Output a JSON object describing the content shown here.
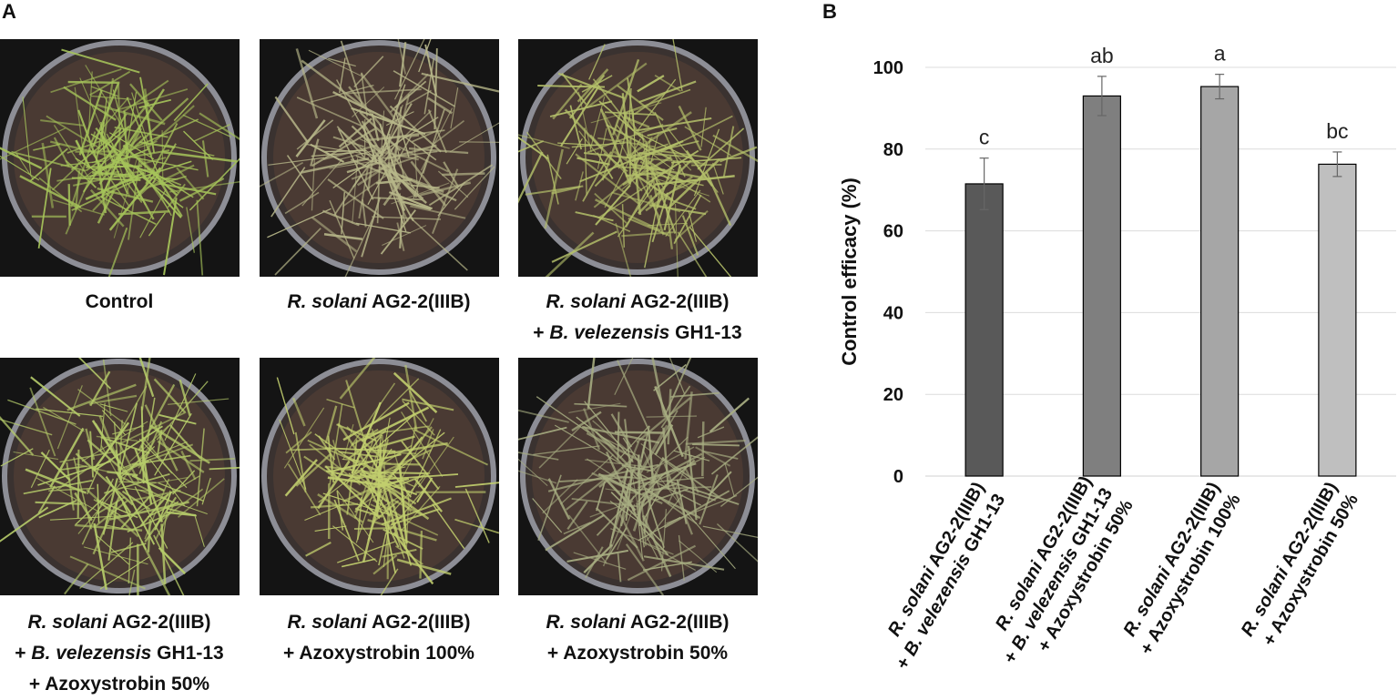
{
  "panel_a": {
    "letter": "A",
    "photos": [
      {
        "lines": [
          {
            "parts": [
              {
                "t": "Control",
                "i": false
              }
            ]
          }
        ]
      },
      {
        "lines": [
          {
            "parts": [
              {
                "t": "R. solani",
                "i": true
              },
              {
                "t": " AG2-2(IIIB)",
                "i": false
              }
            ]
          }
        ]
      },
      {
        "lines": [
          {
            "parts": [
              {
                "t": "R. solani",
                "i": true
              },
              {
                "t": " AG2-2(IIIB)",
                "i": false
              }
            ]
          },
          {
            "parts": [
              {
                "t": "+ ",
                "i": false
              },
              {
                "t": "B. velezensis",
                "i": true
              },
              {
                "t": " GH1-13",
                "i": false
              }
            ]
          }
        ]
      },
      {
        "lines": [
          {
            "parts": [
              {
                "t": "R. solani",
                "i": true
              },
              {
                "t": " AG2-2(IIIB)",
                "i": false
              }
            ]
          },
          {
            "parts": [
              {
                "t": "+ ",
                "i": false
              },
              {
                "t": "B. velezensis",
                "i": true
              },
              {
                "t": " GH1-13",
                "i": false
              }
            ]
          },
          {
            "parts": [
              {
                "t": "+ Azoxystrobin 50%",
                "i": false
              }
            ]
          }
        ]
      },
      {
        "lines": [
          {
            "parts": [
              {
                "t": "R. solani",
                "i": true
              },
              {
                "t": " AG2-2(IIIB)",
                "i": false
              }
            ]
          },
          {
            "parts": [
              {
                "t": "+ Azoxystrobin 100%",
                "i": false
              }
            ]
          }
        ]
      },
      {
        "lines": [
          {
            "parts": [
              {
                "t": "R. solani",
                "i": true
              },
              {
                "t": " AG2-2(IIIB)",
                "i": false
              }
            ]
          },
          {
            "parts": [
              {
                "t": "+ Azoxystrobin 50%",
                "i": false
              }
            ]
          }
        ]
      }
    ],
    "grass_colors": [
      "#a6c45a",
      "#b8b88a",
      "#b4c06a",
      "#b6cc6a",
      "#c2cf6e",
      "#a8ae82"
    ]
  },
  "panel_b": {
    "letter": "B"
  },
  "chart_data": {
    "type": "bar",
    "ylabel": "Control efficacy (%)",
    "ylim": [
      0,
      100
    ],
    "yticks": [
      0,
      20,
      40,
      60,
      80,
      100
    ],
    "grid": true,
    "categories": [
      {
        "lines": [
          {
            "parts": [
              {
                "t": "R. solani",
                "i": true
              },
              {
                "t": " AG2-2(IIIB)",
                "i": false
              }
            ]
          },
          {
            "parts": [
              {
                "t": "+ ",
                "i": false
              },
              {
                "t": "B. velezensis",
                "i": true
              },
              {
                "t": " GH1-13",
                "i": false
              }
            ]
          }
        ]
      },
      {
        "lines": [
          {
            "parts": [
              {
                "t": "R. solani",
                "i": true
              },
              {
                "t": " AG2-2(IIIB)",
                "i": false
              }
            ]
          },
          {
            "parts": [
              {
                "t": "+ ",
                "i": false
              },
              {
                "t": "B. velezensis",
                "i": true
              },
              {
                "t": " GH1-13",
                "i": false
              }
            ]
          },
          {
            "parts": [
              {
                "t": "+ Azoxystrobin 50%",
                "i": false
              }
            ]
          }
        ]
      },
      {
        "lines": [
          {
            "parts": [
              {
                "t": "R. solani",
                "i": true
              },
              {
                "t": " AG2-2(IIIB)",
                "i": false
              }
            ]
          },
          {
            "parts": [
              {
                "t": "+ Azoxystrobin 100%",
                "i": false
              }
            ]
          }
        ]
      },
      {
        "lines": [
          {
            "parts": [
              {
                "t": "R. solani",
                "i": true
              },
              {
                "t": " AG2-2(IIIB)",
                "i": false
              }
            ]
          },
          {
            "parts": [
              {
                "t": "+ Azoxystrobin 50%",
                "i": false
              }
            ]
          }
        ]
      }
    ],
    "values": [
      71.5,
      93,
      95.3,
      76.3
    ],
    "errors": [
      6.3,
      4.8,
      3.0,
      3.0
    ],
    "letters": [
      "c",
      "ab",
      "a",
      "bc"
    ],
    "bar_colors": [
      "#595959",
      "#7f7f7f",
      "#a6a6a6",
      "#bfbfbf"
    ]
  }
}
